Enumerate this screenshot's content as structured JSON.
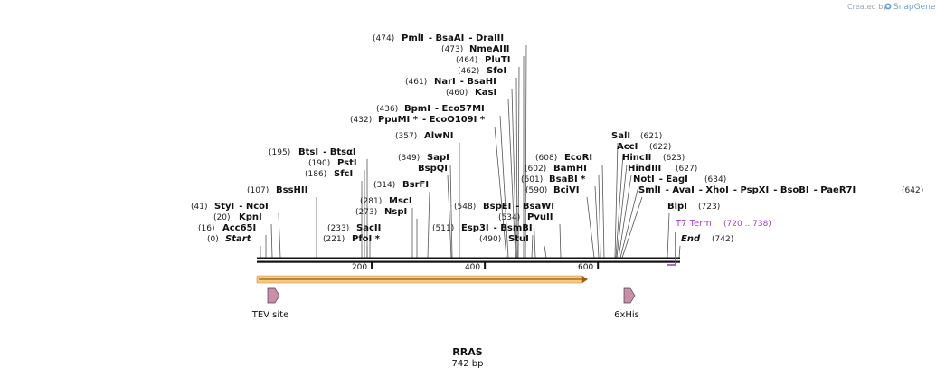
{
  "header": {
    "watermark_prefix": "Created by",
    "watermark_brand": "SnapGene"
  },
  "map": {
    "title": "RRAS",
    "subtitle": "742 bp",
    "total_bp": 742,
    "ticks": [
      {
        "bp": 200,
        "label": "200"
      },
      {
        "bp": 400,
        "label": "400"
      },
      {
        "bp": 600,
        "label": "600"
      }
    ],
    "sites": [
      {
        "pos": "(474)",
        "parts": [
          "PmlI",
          "- BsaAI",
          "- DraIII"
        ]
      },
      {
        "pos": "(473)",
        "parts": [
          "NmeAIII"
        ]
      },
      {
        "pos": "(464)",
        "parts": [
          "PluTI"
        ]
      },
      {
        "pos": "(462)",
        "parts": [
          "SfoI"
        ]
      },
      {
        "pos": "(461)",
        "parts": [
          "NarI",
          "- BsaHI"
        ]
      },
      {
        "pos": "(460)",
        "parts": [
          "KasI"
        ]
      },
      {
        "pos": "(436)",
        "parts": [
          "BpmI",
          "- Eco57MI"
        ]
      },
      {
        "pos": "(432)",
        "parts": [
          "PpuMI *",
          "- EcoO109I *"
        ]
      },
      {
        "pos": "(357)",
        "parts": [
          "AlwNI"
        ]
      },
      {
        "pos": "(349)",
        "parts": [
          "SapI"
        ]
      },
      {
        "pos": "",
        "parts": [
          "BspQI"
        ]
      },
      {
        "pos": "(314)",
        "parts": [
          "BsrFI"
        ]
      },
      {
        "pos": "(195)",
        "parts": [
          "BtsI",
          "- BtsαI"
        ]
      },
      {
        "pos": "(190)",
        "parts": [
          "PstI"
        ]
      },
      {
        "pos": "(186)",
        "parts": [
          "SfcI"
        ]
      },
      {
        "pos": "(107)",
        "parts": [
          "BssHII"
        ]
      },
      {
        "pos": "(281)",
        "parts": [
          "MscI"
        ]
      },
      {
        "pos": "(273)",
        "parts": [
          "NspI"
        ]
      },
      {
        "pos": "(41)",
        "parts": [
          "StyI",
          "- NcoI"
        ]
      },
      {
        "pos": "(20)",
        "parts": [
          "KpnI"
        ]
      },
      {
        "pos": "(16)",
        "parts": [
          "Acc65I"
        ]
      },
      {
        "pos": "(0)",
        "parts": [
          "Start"
        ]
      },
      {
        "pos": "(233)",
        "parts": [
          "SacII"
        ]
      },
      {
        "pos": "(221)",
        "parts": [
          "PfoI *"
        ]
      },
      {
        "pos": "(548)",
        "parts": [
          "BspEI",
          "- BsaWI"
        ]
      },
      {
        "pos": "(534)",
        "parts": [
          "PvuII"
        ]
      },
      {
        "pos": "(511)",
        "parts": [
          "Esp3I",
          "- BsmBI"
        ]
      },
      {
        "pos": "(490)",
        "parts": [
          "StuI"
        ]
      },
      {
        "pos": "(608)",
        "parts": [
          "EcoRI"
        ]
      },
      {
        "pos": "(602)",
        "parts": [
          "BamHI"
        ]
      },
      {
        "pos": "(601)",
        "parts": [
          "BsaBI *"
        ]
      },
      {
        "pos": "(590)",
        "parts": [
          "BciVI"
        ]
      },
      {
        "pos": "(621)",
        "parts": [
          "SalI"
        ]
      },
      {
        "pos": "(622)",
        "parts": [
          "AccI"
        ]
      },
      {
        "pos": "(623)",
        "parts": [
          "HincII"
        ]
      },
      {
        "pos": "(627)",
        "parts": [
          "HindIII"
        ]
      },
      {
        "pos": "(634)",
        "parts": [
          "NotI",
          "- EagI"
        ]
      },
      {
        "pos": "(642)",
        "parts": [
          "SmlI",
          "- AvaI",
          "- XhoI",
          "- PspXI",
          "- BsoBI",
          "- PaeR7I"
        ]
      },
      {
        "pos": "(723)",
        "parts": [
          "BlpI"
        ]
      },
      {
        "pos": "(742)",
        "parts": [
          "End"
        ]
      }
    ],
    "terminator": {
      "label": "T7 Term",
      "range": "(720 .. 738)"
    },
    "orf": {
      "start_bp": 0,
      "end_bp": 582
    },
    "features": [
      {
        "label": "TEV site",
        "bp": 28
      },
      {
        "label": "6xHis",
        "bp": 661
      }
    ],
    "colors": {
      "backbone": "#111111",
      "orf_fill": "#f5c98a",
      "orf_stroke": "#c98a1e",
      "feature_fill": "#c98faa",
      "terminator": "#a040c8",
      "leader": "#555555"
    }
  }
}
